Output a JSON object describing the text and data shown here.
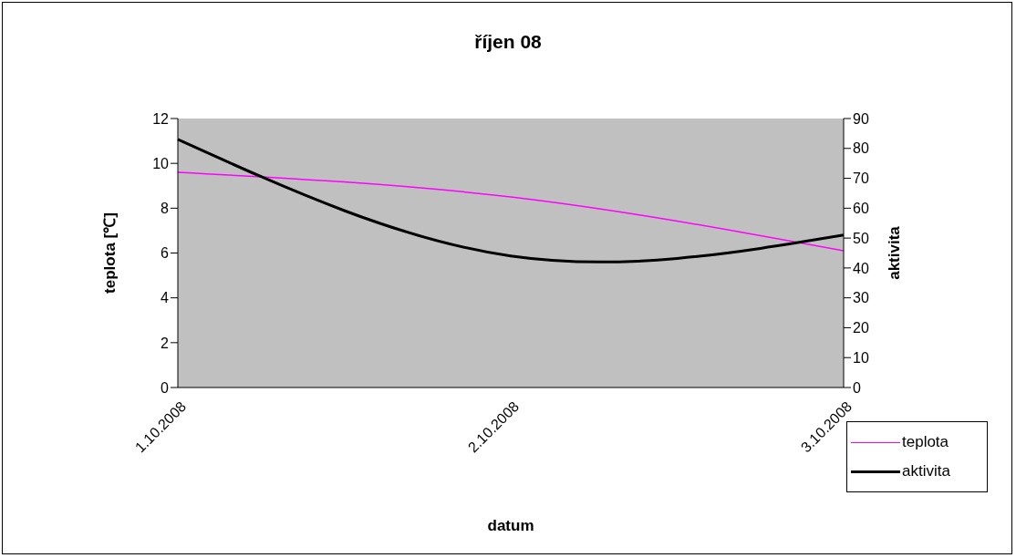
{
  "chart_data": {
    "type": "line",
    "title": "říjen 08",
    "xlabel": "datum",
    "ylabel": "teplota [℃]",
    "y2label": "aktivita",
    "categories": [
      "1.10.2008",
      "2.10.2008",
      "3.10.2008"
    ],
    "series": [
      {
        "name": "teplota",
        "color": "#ff00ff",
        "values": [
          9.6,
          8.5,
          6.1
        ]
      },
      {
        "name": "aktivita",
        "color": "#000000",
        "values": [
          83,
          44,
          51
        ],
        "axis": "y2"
      }
    ],
    "ylim": [
      0,
      12
    ],
    "yticks": [
      0,
      2,
      4,
      6,
      8,
      10,
      12
    ],
    "y2lim": [
      0,
      90
    ],
    "y2ticks": [
      0,
      10,
      20,
      30,
      40,
      50,
      60,
      70,
      80,
      90
    ],
    "grid": false,
    "legend": "right",
    "marker": "none",
    "line_style": "solid"
  }
}
